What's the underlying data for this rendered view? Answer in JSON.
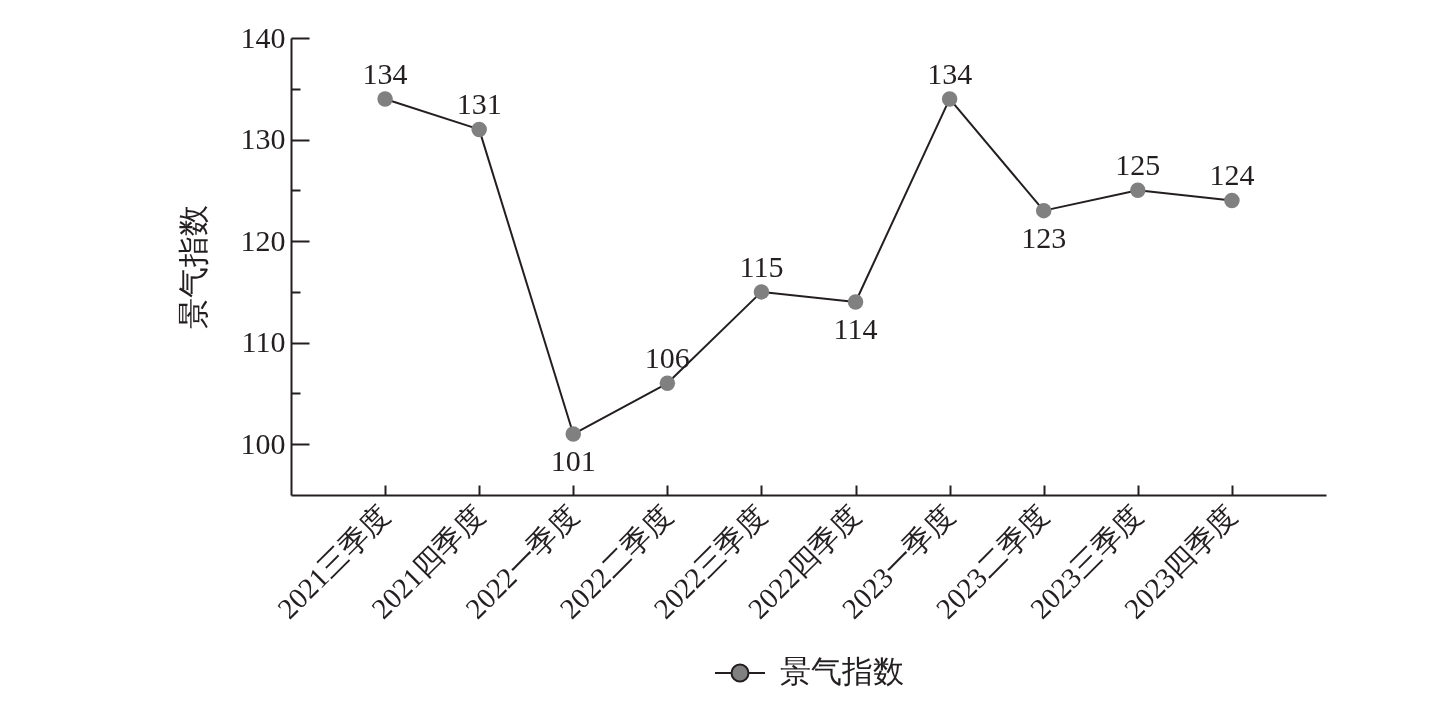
{
  "chart_data": {
    "type": "line",
    "ylabel": "景气指数",
    "categories": [
      "2021三季度",
      "2021四季度",
      "2022一季度",
      "2022二季度",
      "2022三季度",
      "2022四季度",
      "2023一季度",
      "2023二季度",
      "2023三季度",
      "2023四季度"
    ],
    "series": [
      {
        "name": "景气指数",
        "color": "#808080",
        "values": [
          134,
          131,
          101,
          106,
          115,
          114,
          134,
          123,
          125,
          124
        ]
      }
    ],
    "ylim": [
      95,
      140
    ],
    "yticks": [
      100,
      {
        "value": 105,
        "label": null
      },
      110,
      {
        "value": 115,
        "label": null
      },
      120,
      {
        "value": 125,
        "label": null
      },
      130,
      {
        "value": 135,
        "label": null
      },
      140
    ],
    "data_labels": true,
    "legend": "bottom",
    "marker": "circle",
    "line_style": "solid"
  }
}
